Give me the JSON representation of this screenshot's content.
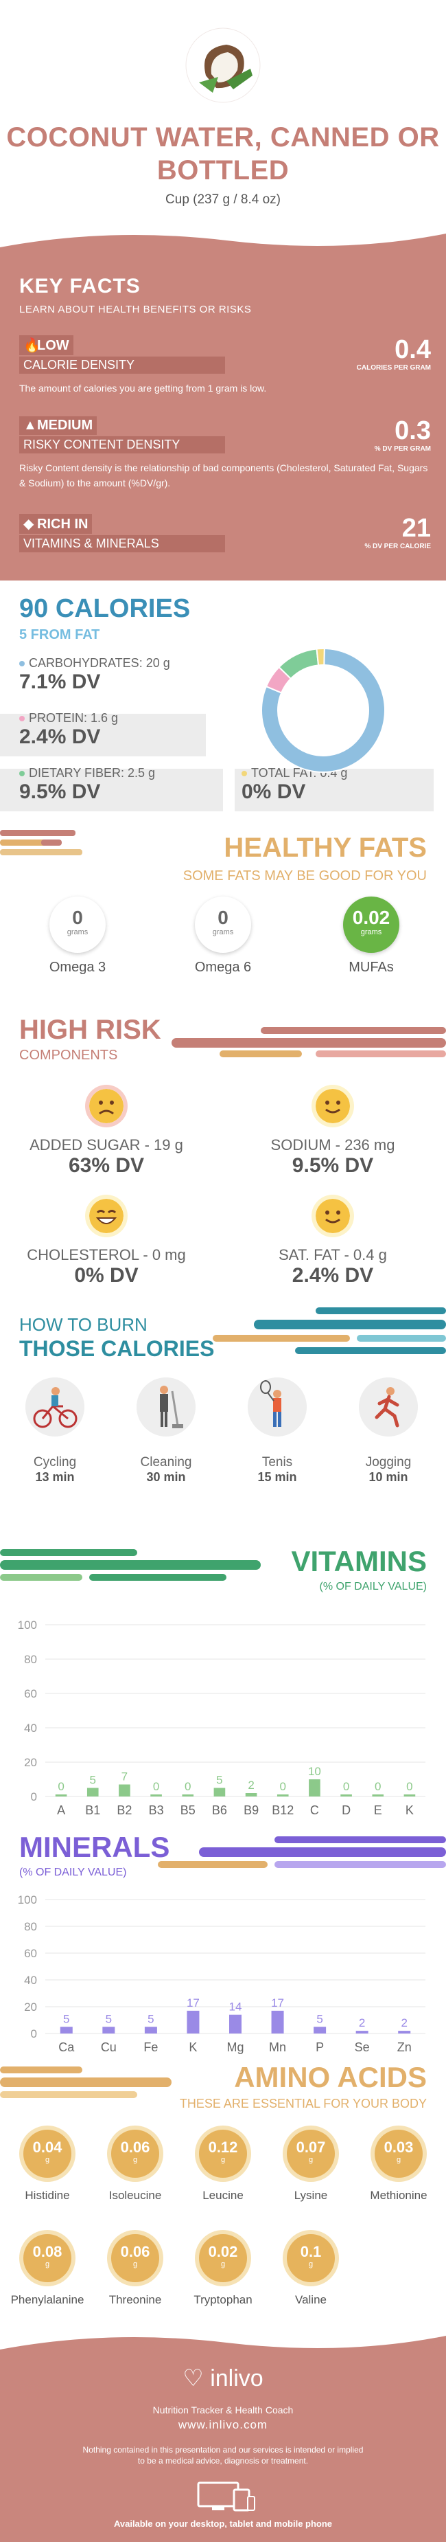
{
  "header": {
    "title": "COCONUT WATER, CANNED OR BOTTLED",
    "serving": "Cup (237 g / 8.4 oz)"
  },
  "key_facts": {
    "title": "KEY FACTS",
    "subtitle": "LEARN ABOUT HEALTH BENEFITS OR RISKS",
    "calorie_density": {
      "level": "LOW",
      "label": "CALORIE DENSITY",
      "value": "0.4",
      "unit": "CALORIES PER GRAM",
      "desc": "The amount of calories you are getting from 1 gram is low."
    },
    "risky_content": {
      "level": "MEDIUM",
      "label": "RISKY CONTENT DENSITY",
      "value": "0.3",
      "unit": "% DV PER GRAM",
      "desc": "Risky Content density is the relationship of bad components (Cholesterol, Saturated Fat, Sugars & Sodium) to the amount (%DV/gr)."
    },
    "rich_in": {
      "level": "RICH  IN",
      "label": "VITAMINS & MINERALS",
      "value": "21",
      "unit": "% DV PER CALORIE"
    }
  },
  "calories": {
    "title": "90 CALORIES",
    "subtitle": "5 FROM FAT",
    "carbs": {
      "label": "CARBOHYDRATES: 20 g",
      "value": "7.1% DV",
      "color": "#8fbfe0"
    },
    "protein": {
      "label": "PROTEIN: 1.6 g",
      "value": "2.4% DV",
      "color": "#f2a6c4"
    },
    "fiber": {
      "label": "DIETARY FIBER: 2.5 g",
      "value": "9.5% DV",
      "color": "#7fcc98"
    },
    "fat": {
      "label": "TOTAL FAT: 0.4 g",
      "value": "0% DV",
      "color": "#f2d77a"
    }
  },
  "chart_data": [
    {
      "type": "pie",
      "title": "",
      "categories": [
        "Carbohydrates",
        "Protein",
        "Dietary Fiber",
        "Total Fat"
      ],
      "values": [
        81,
        6,
        11,
        2
      ],
      "colors": [
        "#8fbfe0",
        "#f2a6c4",
        "#7fcc98",
        "#f2d77a"
      ]
    },
    {
      "type": "bar",
      "title": "VITAMINS",
      "categories": [
        "A",
        "B1",
        "B2",
        "B3",
        "B5",
        "B6",
        "B9",
        "B12",
        "C",
        "D",
        "E",
        "K"
      ],
      "values": [
        0,
        5,
        7,
        0,
        0,
        5,
        2,
        0,
        10,
        0,
        0,
        0
      ],
      "ylim": [
        0,
        100
      ],
      "yticks": [
        0,
        20,
        40,
        60,
        80,
        100
      ],
      "color": "#8cc98a",
      "grid": true
    },
    {
      "type": "bar",
      "title": "MINERALS",
      "categories": [
        "Ca",
        "Cu",
        "Fe",
        "K",
        "Mg",
        "Mn",
        "P",
        "Se",
        "Zn"
      ],
      "values": [
        5,
        5,
        5,
        17,
        14,
        17,
        5,
        2,
        2
      ],
      "ylim": [
        0,
        100
      ],
      "yticks": [
        0,
        20,
        40,
        60,
        80,
        100
      ],
      "color": "#9a8ae6",
      "grid": true
    }
  ],
  "healthy_fats": {
    "title": "HEALTHY FATS",
    "subtitle": "SOME FATS MAY BE GOOD FOR YOU",
    "unit": "grams",
    "items": [
      {
        "name": "Omega 3",
        "value": "0"
      },
      {
        "name": "Omega 6",
        "value": "0"
      },
      {
        "name": "MUFAs",
        "value": "0.02"
      }
    ]
  },
  "high_risk": {
    "title": "HIGH RISK",
    "subtitle": "COMPONENTS",
    "items": [
      {
        "label": "ADDED SUGAR - 19 g",
        "value": "63% DV",
        "face": "sad"
      },
      {
        "label": "SODIUM - 236 mg",
        "value": "9.5% DV",
        "face": "smile"
      },
      {
        "label": "CHOLESTEROL - 0 mg",
        "value": "0% DV",
        "face": "grin"
      },
      {
        "label": "SAT. FAT - 0.4 g",
        "value": "2.4% DV",
        "face": "smile"
      }
    ]
  },
  "burn": {
    "title1": "HOW TO BURN",
    "title2": "THOSE CALORIES",
    "items": [
      {
        "name": "Cycling",
        "time": "13 min"
      },
      {
        "name": "Cleaning",
        "time": "30 min"
      },
      {
        "name": "Tenis",
        "time": "15 min"
      },
      {
        "name": "Jogging",
        "time": "10 min"
      }
    ]
  },
  "vitamins": {
    "title": "VITAMINS",
    "subtitle": "(% OF DAILY VALUE)"
  },
  "minerals": {
    "title": "MINERALS",
    "subtitle": "(% OF DAILY VALUE)"
  },
  "amino": {
    "title": "AMINO ACIDS",
    "subtitle": "THESE ARE ESSENTIAL FOR YOUR BODY",
    "unit": "g",
    "items": [
      {
        "name": "Histidine",
        "value": "0.04"
      },
      {
        "name": "Isoleucine",
        "value": "0.06"
      },
      {
        "name": "Leucine",
        "value": "0.12"
      },
      {
        "name": "Lysine",
        "value": "0.07"
      },
      {
        "name": "Methionine",
        "value": "0.03"
      },
      {
        "name": "Phenylalanine",
        "value": "0.08"
      },
      {
        "name": "Threonine",
        "value": "0.06"
      },
      {
        "name": "Tryptophan",
        "value": "0.02"
      },
      {
        "name": "Valine",
        "value": "0.1"
      }
    ]
  },
  "footer": {
    "brand": "inlivo",
    "tagline": "Nutrition Tracker & Health Coach",
    "url": "www.inlivo.com",
    "disclaimer": "Nothing contained in this presentation and our services is intended or implied to be a medical advice, diagnosis or treatment.",
    "available": "Available on your desktop, tablet and mobile phone"
  }
}
